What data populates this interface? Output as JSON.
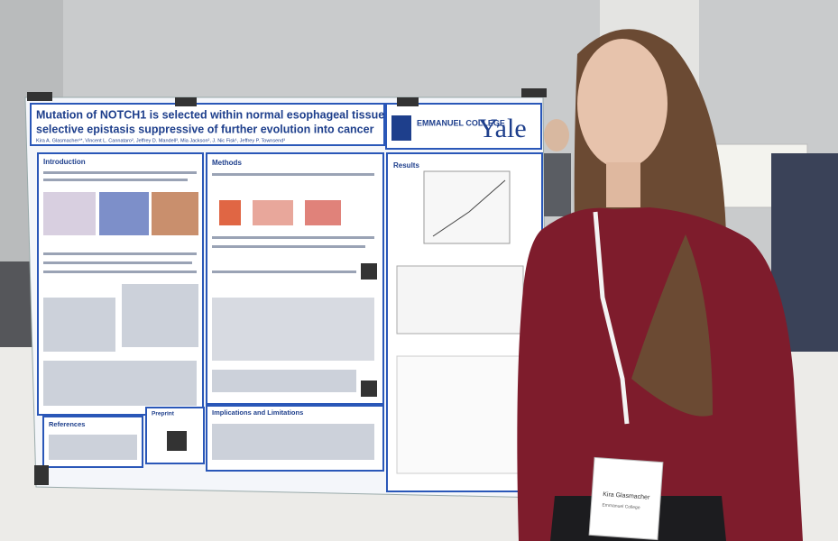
{
  "poster": {
    "title_lines": [
      "Mutation of NOTCH1 is selected within normal esophageal tissues, yet leads to",
      "selective epistasis suppressive of further evolution into cancer"
    ],
    "authors": "Kira A. Glasmacher¹*, Vincent L. Cannataro², Jeffrey D. Mandell³, Mia Jackson², J. Nic Fisk¹, Jeffrey P. Townsend³",
    "college": "EMMANUEL COLLEGE",
    "university": "Yale",
    "sections": [
      "Introduction",
      "Methods",
      "Results",
      "References",
      "Preprint",
      "Implications and Limitations"
    ]
  },
  "badge": {
    "name": "Kira Glasmacher",
    "affiliation": "Emmanuel College"
  }
}
